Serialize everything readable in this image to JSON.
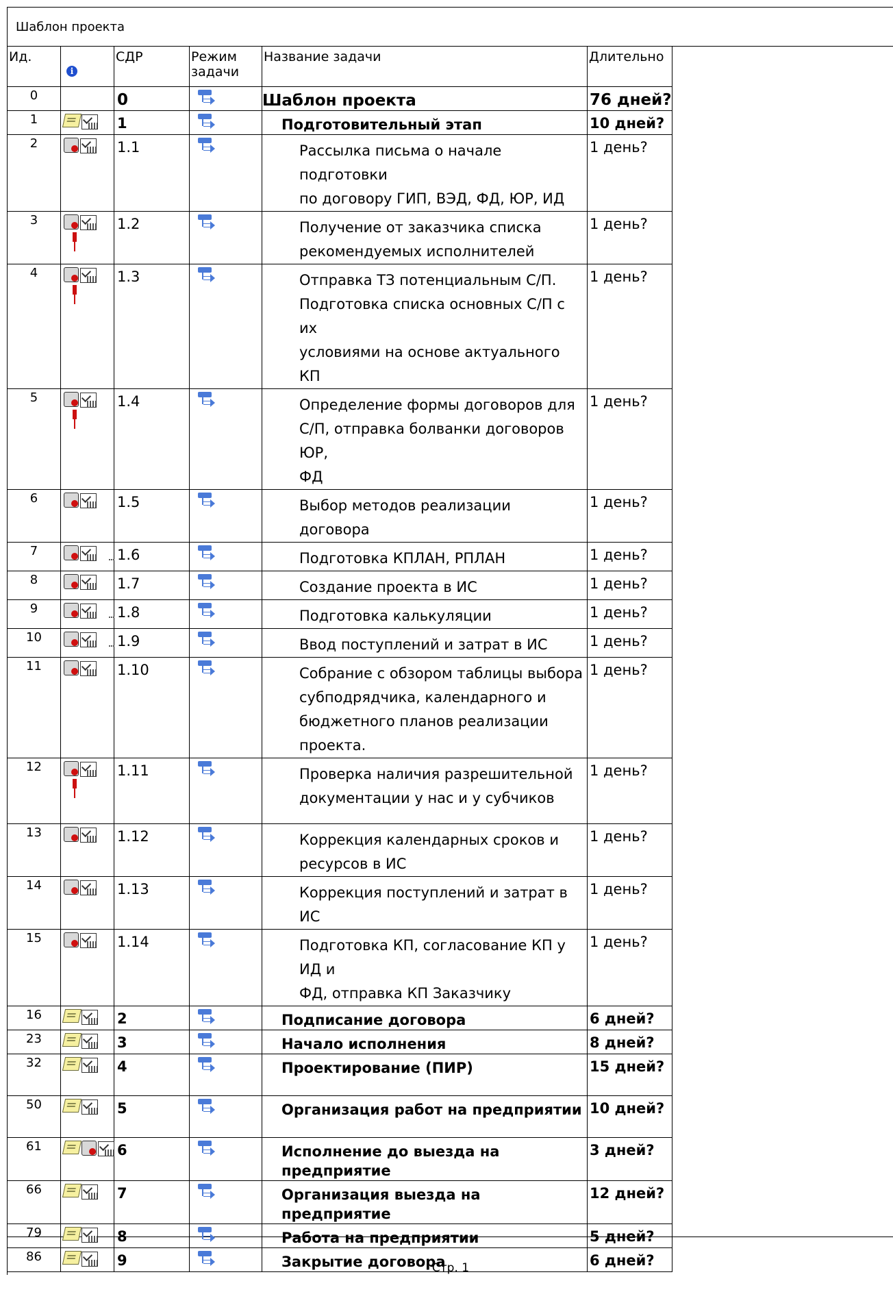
{
  "page": {
    "title": "Шаблон проекта",
    "footer": "Стр. 1"
  },
  "columns": {
    "id": "Ид.",
    "indicators_icon": "info-icon",
    "wbs": "СДР",
    "mode_line1": "Режим",
    "mode_line2": "задачи",
    "name": "Название задачи",
    "duration": "Длительно"
  },
  "rows": [
    {
      "id": "0",
      "wbs": "0",
      "name": [
        "Шаблон проекта"
      ],
      "duration": "76 дней?",
      "level": 0,
      "summary": true,
      "icons": []
    },
    {
      "id": "1",
      "wbs": "1",
      "name": [
        "Подготовительный этап"
      ],
      "duration": "10 дней?",
      "level": 1,
      "summary": true,
      "icons": [
        "note-icon",
        "calendar-icon"
      ]
    },
    {
      "id": "2",
      "wbs": "1.1",
      "name": [
        "Рассылка письма о начале подготовки",
        "по договору ГИП, ВЭД, ФД, ЮР, ИД"
      ],
      "duration": "1 день?",
      "level": 2,
      "summary": false,
      "icons": [
        "constraint-icon",
        "calendar-icon"
      ]
    },
    {
      "id": "3",
      "wbs": "1.2",
      "name": [
        "Получение от заказчика списка",
        "рекомендуемых исполнителей"
      ],
      "duration": "1 день?",
      "level": 2,
      "summary": false,
      "icons": [
        "constraint-icon",
        "calendar-icon",
        "resource-icon"
      ]
    },
    {
      "id": "4",
      "wbs": "1.3",
      "name": [
        "Отправка ТЗ потенциальным С/П.",
        "Подготовка списка основных С/П с их",
        "условиями на основе актуального КП"
      ],
      "duration": "1 день?",
      "level": 2,
      "summary": false,
      "icons": [
        "constraint-icon",
        "calendar-icon",
        "resource-icon"
      ]
    },
    {
      "id": "5",
      "wbs": "1.4",
      "name": [
        "Определение формы договоров для",
        "С/П, отправка болванки договоров ЮР,",
        "ФД"
      ],
      "duration": "1 день?",
      "level": 2,
      "summary": false,
      "icons": [
        "constraint-icon",
        "calendar-icon",
        "resource-icon"
      ]
    },
    {
      "id": "6",
      "wbs": "1.5",
      "name": [
        "Выбор методов реализации договора"
      ],
      "duration": "1 день?",
      "level": 2,
      "summary": false,
      "icons": [
        "constraint-icon",
        "calendar-icon"
      ]
    },
    {
      "id": "7",
      "wbs": "1.6",
      "name": [
        "Подготовка КПЛАН, РПЛАН"
      ],
      "duration": "1 день?",
      "level": 2,
      "summary": false,
      "icons": [
        "constraint-icon",
        "calendar-icon",
        "link-dash"
      ]
    },
    {
      "id": "8",
      "wbs": "1.7",
      "name": [
        "Создание проекта в ИС"
      ],
      "duration": "1 день?",
      "level": 2,
      "summary": false,
      "icons": [
        "constraint-icon",
        "calendar-icon"
      ]
    },
    {
      "id": "9",
      "wbs": "1.8",
      "name": [
        "Подготовка калькуляции"
      ],
      "duration": "1 день?",
      "level": 2,
      "summary": false,
      "icons": [
        "constraint-icon",
        "calendar-icon",
        "link-dash"
      ]
    },
    {
      "id": "10",
      "wbs": "1.9",
      "name": [
        "Ввод поступлений и затрат в ИС"
      ],
      "duration": "1 день?",
      "level": 2,
      "summary": false,
      "icons": [
        "constraint-icon",
        "calendar-icon",
        "link-dash"
      ]
    },
    {
      "id": "11",
      "wbs": "1.10",
      "name": [
        "Собрание с обзором таблицы выбора",
        "субподрядчика, календарного и",
        "бюджетного планов реализации",
        "проекта."
      ],
      "duration": "1 день?",
      "level": 2,
      "summary": false,
      "icons": [
        "constraint-icon",
        "calendar-icon"
      ]
    },
    {
      "id": "12",
      "wbs": "1.11",
      "name": [
        "Проверка наличия разрешительной",
        "документации у нас и у субчиков"
      ],
      "duration": "1 день?",
      "level": 2,
      "summary": false,
      "icons": [
        "constraint-icon",
        "calendar-icon",
        "resource-icon"
      ]
    },
    {
      "id": "13",
      "wbs": "1.12",
      "name": [
        "Коррекция календарных сроков и",
        "ресурсов в ИС"
      ],
      "duration": "1 день?",
      "level": 2,
      "summary": false,
      "icons": [
        "constraint-icon",
        "calendar-icon"
      ]
    },
    {
      "id": "14",
      "wbs": "1.13",
      "name": [
        "Коррекция поступлений и затрат в ИС"
      ],
      "duration": "1 день?",
      "level": 2,
      "summary": false,
      "icons": [
        "constraint-icon",
        "calendar-icon"
      ]
    },
    {
      "id": "15",
      "wbs": "1.14",
      "name": [
        "Подготовка КП, согласование КП у ИД и",
        "ФД, отправка КП Заказчику"
      ],
      "duration": "1 день?",
      "level": 2,
      "summary": false,
      "icons": [
        "constraint-icon",
        "calendar-icon"
      ]
    },
    {
      "id": "16",
      "wbs": "2",
      "name": [
        "Подписание договора"
      ],
      "duration": "6 дней?",
      "level": 1,
      "summary": true,
      "icons": [
        "note-icon",
        "calendar-icon"
      ]
    },
    {
      "id": "23",
      "wbs": "3",
      "name": [
        "Начало исполнения"
      ],
      "duration": "8 дней?",
      "level": 1,
      "summary": true,
      "icons": [
        "note-icon",
        "calendar-icon"
      ]
    },
    {
      "id": "32",
      "wbs": "4",
      "name": [
        "Проектирование (ПИР)"
      ],
      "duration": "15 дней?",
      "level": 1,
      "summary": true,
      "icons": [
        "note-icon",
        "calendar-icon"
      ]
    },
    {
      "id": "50",
      "wbs": "5",
      "name": [
        "Организация работ на предприятии"
      ],
      "duration": "10 дней?",
      "level": 1,
      "summary": true,
      "icons": [
        "note-icon",
        "calendar-icon"
      ]
    },
    {
      "id": "61",
      "wbs": "6",
      "name": [
        "Исполнение  до выезда на предприятие"
      ],
      "duration": "3 дней?",
      "level": 1,
      "summary": true,
      "icons": [
        "note-icon",
        "constraint-icon",
        "calendar-icon"
      ]
    },
    {
      "id": "66",
      "wbs": "7",
      "name": [
        "Организация выезда на предприятие"
      ],
      "duration": "12 дней?",
      "level": 1,
      "summary": true,
      "icons": [
        "note-icon",
        "calendar-icon"
      ]
    },
    {
      "id": "79",
      "wbs": "8",
      "name": [
        "Работа на предприятии"
      ],
      "duration": "5 дней?",
      "level": 1,
      "summary": true,
      "icons": [
        "note-icon",
        "calendar-icon"
      ]
    },
    {
      "id": "86",
      "wbs": "9",
      "name": [
        "Закрытие договора"
      ],
      "duration": "6 дней?",
      "level": 1,
      "summary": true,
      "icons": [
        "note-icon",
        "calendar-icon"
      ]
    }
  ]
}
